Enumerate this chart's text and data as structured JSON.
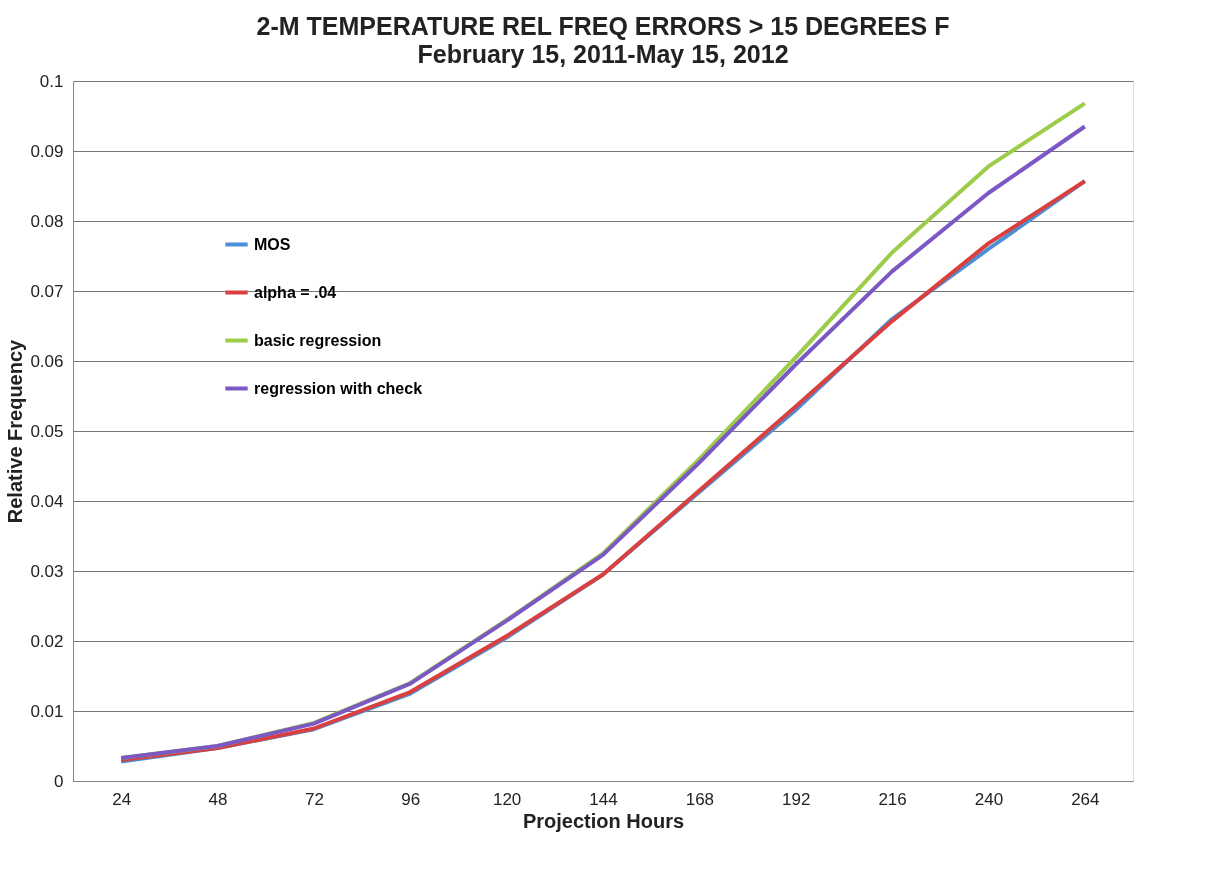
{
  "chart_data": {
    "type": "line",
    "title": "2-M TEMPERATURE REL FREQ ERRORS > 15 DEGREES F",
    "subtitle": "February 15, 2011-May 15, 2012",
    "xlabel": "Projection Hours",
    "ylabel": "Relative Frequency",
    "categories": [
      "24",
      "48",
      "72",
      "96",
      "120",
      "144",
      "168",
      "192",
      "216",
      "240",
      "264"
    ],
    "series": [
      {
        "name": "MOS",
        "color": "#4a8fd8",
        "values": [
          0.0028,
          0.0047,
          0.0074,
          0.0125,
          0.0205,
          0.0295,
          0.0413,
          0.053,
          0.066,
          0.076,
          0.0857
        ]
      },
      {
        "name": "alpha = .04",
        "color": "#d9403f",
        "values": [
          0.003,
          0.0047,
          0.0075,
          0.0127,
          0.0207,
          0.0295,
          0.0415,
          0.0535,
          0.0657,
          0.0768,
          0.0857
        ]
      },
      {
        "name": "basic regression",
        "color": "#9ccc4a",
        "values": [
          0.0033,
          0.005,
          0.0083,
          0.014,
          0.023,
          0.0325,
          0.046,
          0.0605,
          0.0755,
          0.0878,
          0.0968
        ]
      },
      {
        "name": "regression with check",
        "color": "#7b58c4",
        "values": [
          0.0033,
          0.005,
          0.0082,
          0.0139,
          0.0229,
          0.0323,
          0.0455,
          0.0595,
          0.0728,
          0.084,
          0.0935
        ]
      }
    ],
    "ylim": [
      0,
      0.1
    ],
    "yticks": [
      0,
      0.01,
      0.02,
      0.03,
      0.04,
      0.05,
      0.06,
      0.07,
      0.08,
      0.09,
      0.1
    ],
    "grid": "y",
    "legend": "left",
    "line_style": "solid"
  }
}
